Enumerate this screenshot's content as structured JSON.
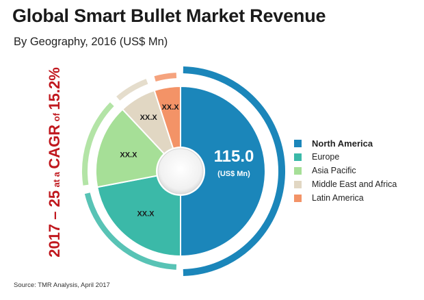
{
  "header": {
    "title": "Global Smart Bullet Market Revenue",
    "subtitle": "By Geography, 2016 (US$ Mn)"
  },
  "cagr": {
    "years": "2017 – 25",
    "at_a": "at a",
    "metric": "CAGR",
    "of": "of",
    "rate": "15.2%"
  },
  "center": {
    "value": "115.0",
    "unit": "(US$ Mn)"
  },
  "source": "Source: TMR Analysis, April 2017",
  "chart_data": {
    "type": "pie",
    "title": "Global Smart Bullet Market Revenue",
    "subtitle": "By Geography, 2016 (US$ Mn)",
    "legend_position": "right",
    "slices": [
      {
        "name": "North America",
        "share_pct": 50.0,
        "label": "115.0",
        "color": "#1b86ba",
        "highlighted": true
      },
      {
        "name": "Europe",
        "share_pct": 22.0,
        "label": "XX.X",
        "color": "#3bb9a8"
      },
      {
        "name": "Asia Pacific",
        "share_pct": 16.0,
        "label": "XX.X",
        "color": "#a6df97"
      },
      {
        "name": "Middle East and Africa",
        "share_pct": 7.0,
        "label": "XX.X",
        "color": "#e1d7c3"
      },
      {
        "name": "Latin America",
        "share_pct": 5.0,
        "label": "XX.X",
        "color": "#f39367"
      }
    ]
  }
}
